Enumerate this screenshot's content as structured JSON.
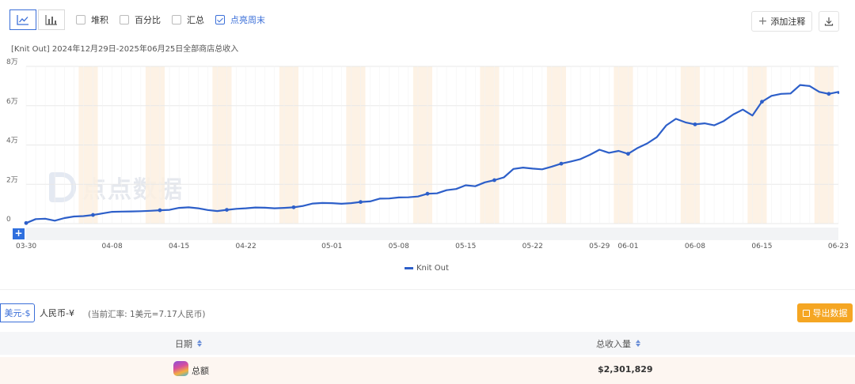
{
  "toolbar": {
    "chart_types": [
      {
        "name": "line-chart-icon",
        "active": true
      },
      {
        "name": "bar-chart-icon",
        "active": false
      }
    ],
    "options": [
      {
        "label": "堆积",
        "checked": false
      },
      {
        "label": "百分比",
        "checked": false
      },
      {
        "label": "汇总",
        "checked": false
      },
      {
        "label": "点亮周末",
        "checked": true
      }
    ],
    "add_annotation": "添加注释",
    "download_icon": "download-icon"
  },
  "subtitle": "[Knit Out] 2024年12月29日-2025年06月25日全部商店总收入",
  "watermark": "点点数据",
  "chart_data": {
    "type": "line",
    "title": "",
    "ylabel": "",
    "xlabel": "",
    "ylim": [
      0,
      80000
    ],
    "y_ticks": [
      "0",
      "2万",
      "4万",
      "6万",
      "8万"
    ],
    "x_ticks": [
      "03-30",
      "04-08",
      "04-15",
      "04-22",
      "05-01",
      "05-08",
      "05-15",
      "05-22",
      "05-29",
      "06-01",
      "06-08",
      "06-15",
      "06-23"
    ],
    "weekend_highlight": true,
    "grid": true,
    "legend_position": "bottom",
    "series": [
      {
        "name": "Knit Out",
        "color": "#2d5fc9",
        "x": [
          "03-30",
          "03-31",
          "04-01",
          "04-02",
          "04-03",
          "04-04",
          "04-05",
          "04-06",
          "04-07",
          "04-08",
          "04-09",
          "04-10",
          "04-11",
          "04-12",
          "04-13",
          "04-14",
          "04-15",
          "04-16",
          "04-17",
          "04-18",
          "04-19",
          "04-20",
          "04-21",
          "04-22",
          "04-23",
          "04-24",
          "04-25",
          "04-26",
          "04-27",
          "04-28",
          "04-29",
          "04-30",
          "05-01",
          "05-02",
          "05-03",
          "05-04",
          "05-05",
          "05-06",
          "05-07",
          "05-08",
          "05-09",
          "05-10",
          "05-11",
          "05-12",
          "05-13",
          "05-14",
          "05-15",
          "05-16",
          "05-17",
          "05-18",
          "05-19",
          "05-20",
          "05-21",
          "05-22",
          "05-23",
          "05-24",
          "05-25",
          "05-26",
          "05-27",
          "05-28",
          "05-29",
          "05-30",
          "05-31",
          "06-01",
          "06-02",
          "06-03",
          "06-04",
          "06-05",
          "06-06",
          "06-07",
          "06-08",
          "06-09",
          "06-10",
          "06-11",
          "06-12",
          "06-13",
          "06-14",
          "06-15",
          "06-16",
          "06-17",
          "06-18",
          "06-19",
          "06-20",
          "06-21",
          "06-22",
          "06-23",
          "06-24",
          "06-25"
        ],
        "values": [
          300,
          2300,
          2500,
          1500,
          2800,
          3600,
          3800,
          4400,
          5200,
          6000,
          6100,
          6200,
          6300,
          6500,
          6800,
          7000,
          8000,
          8300,
          7800,
          6900,
          6400,
          7000,
          7500,
          7800,
          8200,
          8100,
          7800,
          8000,
          8300,
          9000,
          10200,
          10500,
          10400,
          10100,
          10400,
          11000,
          11300,
          12700,
          12800,
          13300,
          13400,
          13800,
          15200,
          15400,
          17000,
          17600,
          19500,
          19000,
          21000,
          22100,
          23500,
          27800,
          28500,
          28000,
          27600,
          29000,
          30500,
          31600,
          32800,
          35000,
          37600,
          36000,
          37000,
          35500,
          38500,
          40800,
          44000,
          50000,
          53300,
          51500,
          50500,
          51000,
          50000,
          52200,
          55500,
          58000,
          55000,
          62000,
          65000,
          66000,
          66200,
          70500,
          70000,
          67000,
          66000,
          67000,
          66200,
          66000
        ]
      }
    ]
  },
  "currency": {
    "usd_label": "美元-$",
    "cny_label": "人民币-¥",
    "rate_text": "(当前汇率: 1美元=7.17人民币)"
  },
  "export_label": "导出数据",
  "table": {
    "columns": [
      "日期",
      "总收入量"
    ],
    "rows": [
      {
        "label": "总额",
        "value": "$2,301,829"
      }
    ]
  }
}
